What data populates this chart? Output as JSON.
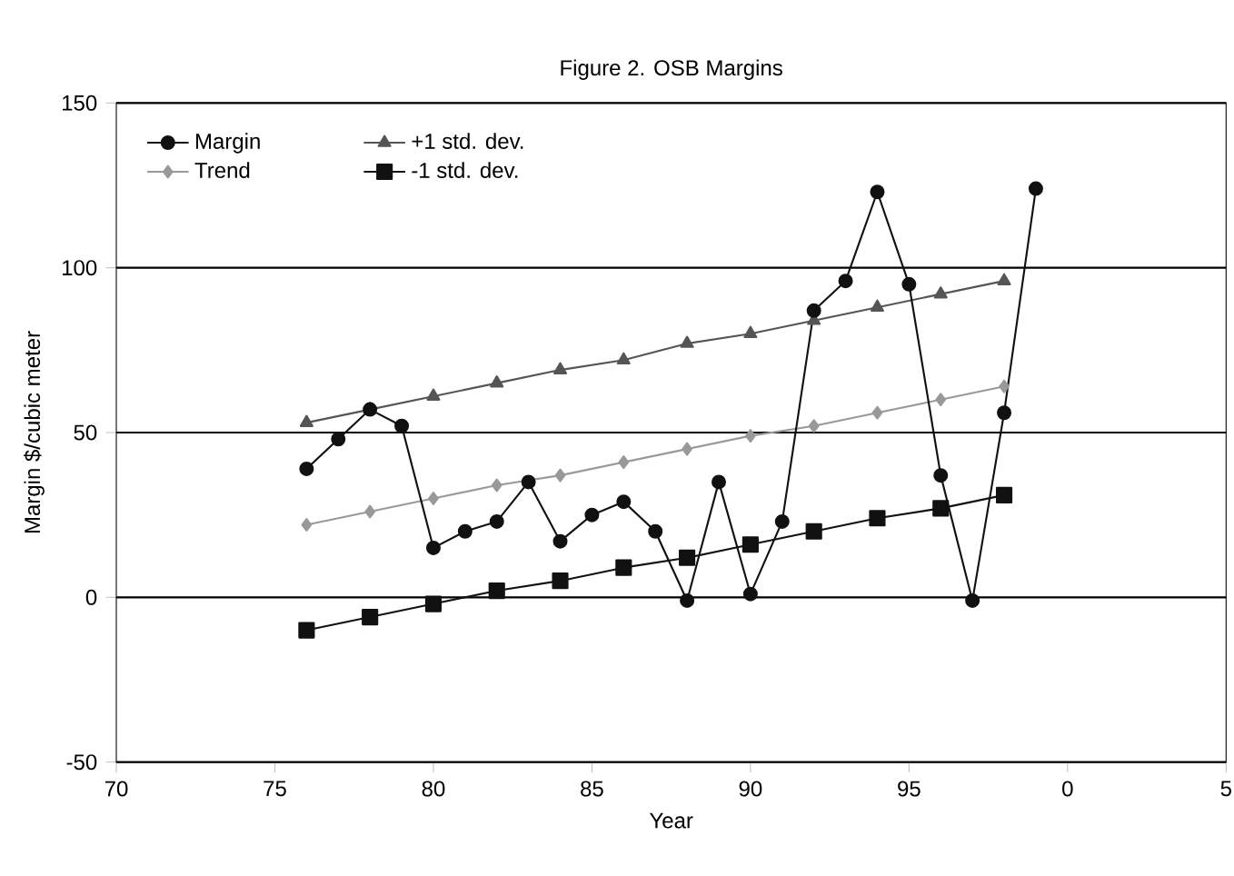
{
  "chart_data": {
    "type": "line",
    "title": "Figure 2. OSB Margins",
    "xlabel": "Year",
    "ylabel": "Margin $/cubic meter",
    "xlim": [
      "1970",
      "2005"
    ],
    "xticks": [
      {
        "value": "1970",
        "label": "70"
      },
      {
        "value": "1975",
        "label": "75"
      },
      {
        "value": "1980",
        "label": "80"
      },
      {
        "value": "1985",
        "label": "85"
      },
      {
        "value": "1990",
        "label": "90"
      },
      {
        "value": "1995",
        "label": "95"
      },
      {
        "value": "2000",
        "label": "0"
      },
      {
        "value": "2005",
        "label": "5"
      }
    ],
    "ylim": [
      -50,
      150
    ],
    "yticks": [
      -50,
      0,
      50,
      100,
      150
    ],
    "grid": "y",
    "legend": "top left",
    "line_style": "solid",
    "series": [
      {
        "name": "Margin",
        "color": "#111111",
        "marker": "circle",
        "x": [
          "1976",
          "1977",
          "1978",
          "1979",
          "1980",
          "1981",
          "1982",
          "1983",
          "1984",
          "1985",
          "1986",
          "1987",
          "1988",
          "1989",
          "1990",
          "1991",
          "1992",
          "1993",
          "1994",
          "1995",
          "1996",
          "1997",
          "1998",
          "1999"
        ],
        "values": [
          39,
          48,
          57,
          52,
          15,
          20,
          23,
          35,
          17,
          25,
          29,
          20,
          -1,
          35,
          1,
          23,
          87,
          96,
          123,
          95,
          37,
          -1,
          56,
          124
        ]
      },
      {
        "name": "+1 std. dev.",
        "color": "#555555",
        "marker": "triangle",
        "x": [
          "1976",
          "1978",
          "1980",
          "1982",
          "1984",
          "1986",
          "1988",
          "1990",
          "1992",
          "1994",
          "1996",
          "1998"
        ],
        "values": [
          53,
          57,
          61,
          65,
          69,
          72,
          77,
          80,
          84,
          88,
          92,
          96
        ]
      },
      {
        "name": "Trend",
        "color": "#999999",
        "marker": "diamond",
        "x": [
          "1976",
          "1978",
          "1980",
          "1982",
          "1984",
          "1986",
          "1988",
          "1990",
          "1992",
          "1994",
          "1996",
          "1998"
        ],
        "values": [
          22,
          26,
          30,
          34,
          37,
          41,
          45,
          49,
          52,
          56,
          60,
          64
        ]
      },
      {
        "name": "-1 std. dev.",
        "color": "#111111",
        "marker": "square",
        "x": [
          "1976",
          "1978",
          "1980",
          "1982",
          "1984",
          "1986",
          "1988",
          "1990",
          "1992",
          "1994",
          "1996",
          "1998"
        ],
        "values": [
          -10,
          -6,
          -2,
          2,
          5,
          9,
          12,
          16,
          20,
          24,
          27,
          31
        ]
      }
    ]
  }
}
